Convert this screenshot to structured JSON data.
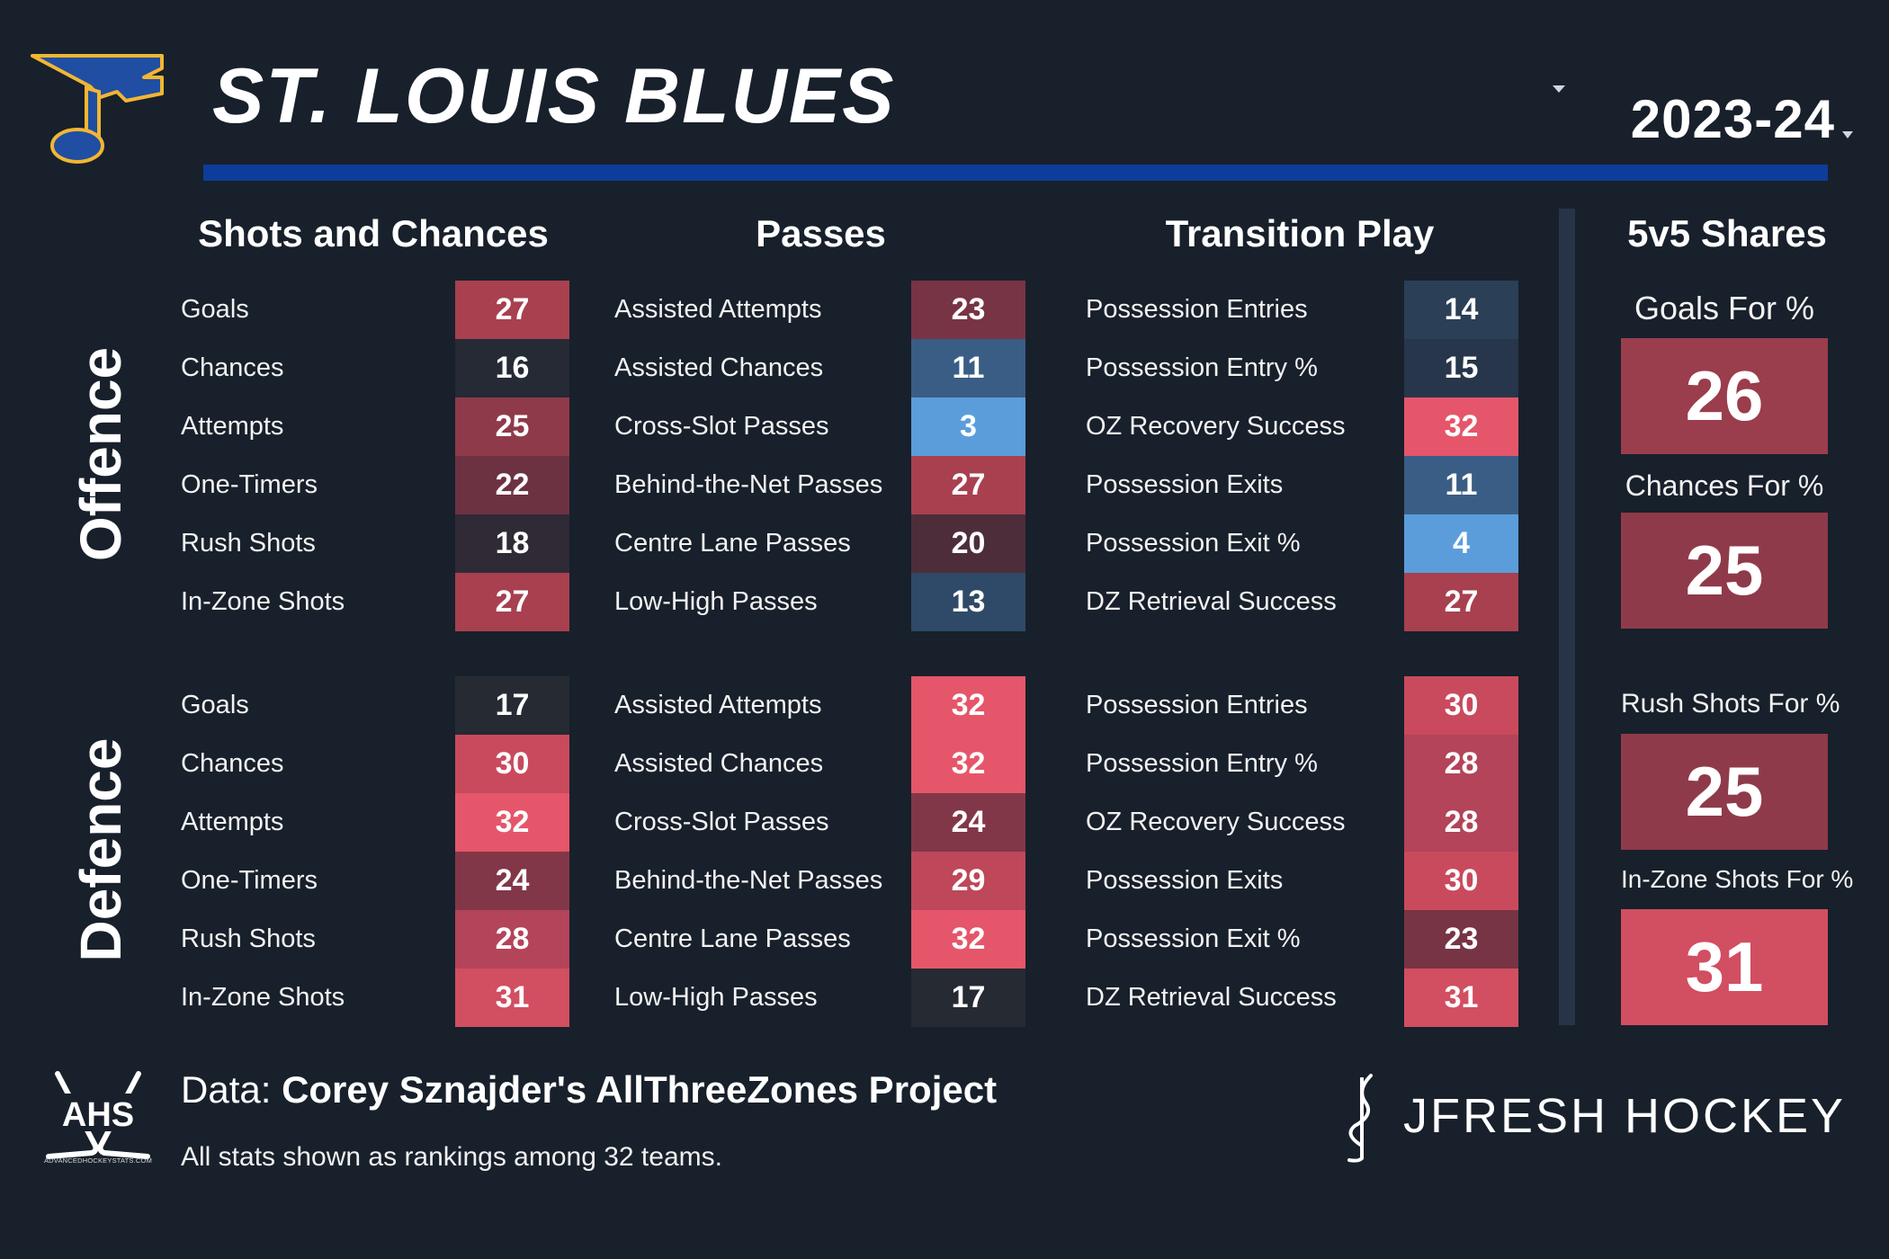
{
  "header": {
    "team_name": "ST. LOUIS BLUES",
    "season": "2023-24"
  },
  "columns": {
    "shots_and_chances": "Shots and Chances",
    "passes": "Passes",
    "transition_play": "Transition Play",
    "shares": "5v5 Shares"
  },
  "sections": {
    "offence": "Offence",
    "defence": "Defence"
  },
  "offence": {
    "shots": [
      {
        "label": "Goals",
        "rank": 27,
        "color": "#a8404f"
      },
      {
        "label": "Chances",
        "rank": 16,
        "color": "#252a35"
      },
      {
        "label": "Attempts",
        "rank": 25,
        "color": "#8f3a4a"
      },
      {
        "label": "One-Timers",
        "rank": 22,
        "color": "#6d3242"
      },
      {
        "label": "Rush Shots",
        "rank": 18,
        "color": "#2f2a36"
      },
      {
        "label": "In-Zone Shots",
        "rank": 27,
        "color": "#a8404f"
      }
    ],
    "passes": [
      {
        "label": "Assisted Attempts",
        "rank": 23,
        "color": "#773444"
      },
      {
        "label": "Assisted Chances",
        "rank": 11,
        "color": "#3a5d85"
      },
      {
        "label": "Cross-Slot Passes",
        "rank": 3,
        "color": "#5b9ddb"
      },
      {
        "label": "Behind-the-Net Passes",
        "rank": 27,
        "color": "#a8404f"
      },
      {
        "label": "Centre Lane Passes",
        "rank": 20,
        "color": "#4e2d3b"
      },
      {
        "label": "Low-High Passes",
        "rank": 13,
        "color": "#2e4a68"
      }
    ],
    "transition": [
      {
        "label": "Possession Entries",
        "rank": 14,
        "color": "#2b3f57"
      },
      {
        "label": "Possession Entry %",
        "rank": 15,
        "color": "#27364a"
      },
      {
        "label": "OZ Recovery Success",
        "rank": 32,
        "color": "#e5566a"
      },
      {
        "label": "Possession Exits",
        "rank": 11,
        "color": "#3a5d85"
      },
      {
        "label": "Possession Exit %",
        "rank": 4,
        "color": "#5b9ddb"
      },
      {
        "label": "DZ Retrieval Success",
        "rank": 27,
        "color": "#a8404f"
      }
    ]
  },
  "defence": {
    "shots": [
      {
        "label": "Goals",
        "rank": 17,
        "color": "#262a33"
      },
      {
        "label": "Chances",
        "rank": 30,
        "color": "#c94a5d"
      },
      {
        "label": "Attempts",
        "rank": 32,
        "color": "#e5566a"
      },
      {
        "label": "One-Timers",
        "rank": 24,
        "color": "#823748"
      },
      {
        "label": "Rush Shots",
        "rank": 28,
        "color": "#b3445a"
      },
      {
        "label": "In-Zone Shots",
        "rank": 31,
        "color": "#d24e61"
      }
    ],
    "passes": [
      {
        "label": "Assisted Attempts",
        "rank": 32,
        "color": "#e5566a"
      },
      {
        "label": "Assisted Chances",
        "rank": 32,
        "color": "#e5566a"
      },
      {
        "label": "Cross-Slot Passes",
        "rank": 24,
        "color": "#823748"
      },
      {
        "label": "Behind-the-Net Passes",
        "rank": 29,
        "color": "#be4759"
      },
      {
        "label": "Centre Lane Passes",
        "rank": 32,
        "color": "#e5566a"
      },
      {
        "label": "Low-High Passes",
        "rank": 17,
        "color": "#262a33"
      }
    ],
    "transition": [
      {
        "label": "Possession Entries",
        "rank": 30,
        "color": "#c94a5d"
      },
      {
        "label": "Possession Entry %",
        "rank": 28,
        "color": "#b3445a"
      },
      {
        "label": "OZ Recovery Success",
        "rank": 28,
        "color": "#b3445a"
      },
      {
        "label": "Possession Exits",
        "rank": 30,
        "color": "#c94a5d"
      },
      {
        "label": "Possession Exit %",
        "rank": 23,
        "color": "#773444"
      },
      {
        "label": "DZ Retrieval Success",
        "rank": 31,
        "color": "#d24e61"
      }
    ]
  },
  "shares": [
    {
      "label": "Goals For %",
      "rank": 26,
      "color": "#9a3d4d"
    },
    {
      "label": "Chances For %",
      "rank": 25,
      "color": "#8f3a4a"
    },
    {
      "label": "Rush Shots For %",
      "rank": 25,
      "color": "#8f3a4a"
    },
    {
      "label": "In-Zone Shots For %",
      "rank": 31,
      "color": "#d24e61"
    }
  ],
  "footer": {
    "data_prefix": "Data: ",
    "data_source": "Corey Sznajder's AllThreeZones Project",
    "footnote": "All stats shown as rankings among 32 teams.",
    "ahs_logo_text": "AHS",
    "ahs_site": "ADVANCEDHOCKEYSTATS.COM",
    "brand": "JFRESH HOCKEY"
  },
  "colors": {
    "background": "#18202b",
    "accent_bar": "#0d3d9a",
    "divider": "#273447",
    "logo_blue": "#1f4ea3",
    "logo_gold": "#f2b632"
  }
}
